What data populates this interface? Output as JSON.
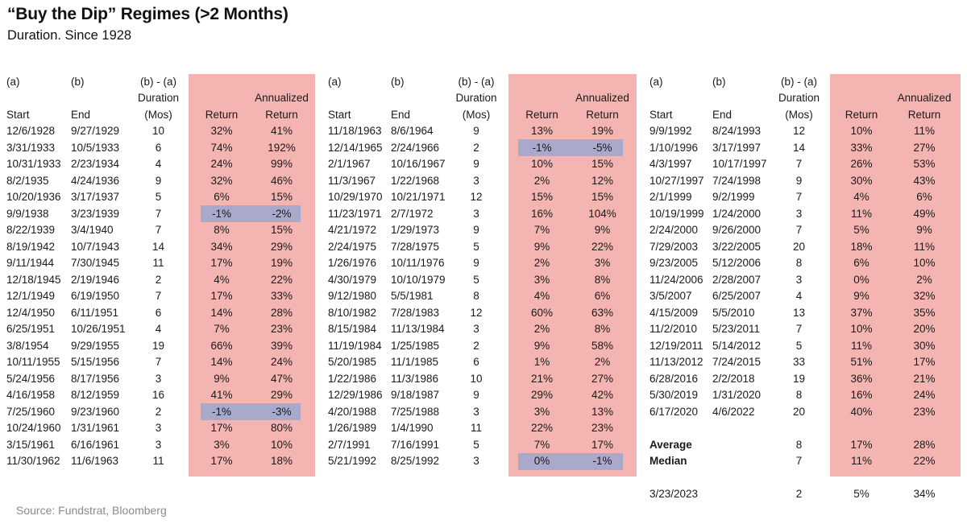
{
  "title": "“Buy the Dip” Regimes (>2 Months)",
  "subtitle": "Duration. Since 1928",
  "source": "Source: Fundstrat, Bloomberg",
  "header": {
    "a": "(a)",
    "b": "(b)",
    "ba": "(b) - (a)",
    "duration": "Duration",
    "annualized": "Annualized",
    "start": "Start",
    "end": "End",
    "mos": "(Mos)",
    "return": "Return",
    "ann_return": "Return"
  },
  "highlight_color": "#a9a9cc",
  "shade_color": "#f4b5b2",
  "chart_data": {
    "type": "table",
    "columns": [
      "Start",
      "End",
      "Duration (Mos)",
      "Return",
      "Annualized Return"
    ],
    "panels": [
      {
        "rows": [
          [
            "12/6/1928",
            "9/27/1929",
            "10",
            "32%",
            "41%"
          ],
          [
            "3/31/1933",
            "10/5/1933",
            "6",
            "74%",
            "192%"
          ],
          [
            "10/31/1933",
            "2/23/1934",
            "4",
            "24%",
            "99%"
          ],
          [
            "8/2/1935",
            "4/24/1936",
            "9",
            "32%",
            "46%"
          ],
          [
            "10/20/1936",
            "3/17/1937",
            "5",
            "6%",
            "15%"
          ],
          [
            "9/9/1938",
            "3/23/1939",
            "7",
            "-1%",
            "-2%"
          ],
          [
            "8/22/1939",
            "3/4/1940",
            "7",
            "8%",
            "15%"
          ],
          [
            "8/19/1942",
            "10/7/1943",
            "14",
            "34%",
            "29%"
          ],
          [
            "9/11/1944",
            "7/30/1945",
            "11",
            "17%",
            "19%"
          ],
          [
            "12/18/1945",
            "2/19/1946",
            "2",
            "4%",
            "22%"
          ],
          [
            "12/1/1949",
            "6/19/1950",
            "7",
            "17%",
            "33%"
          ],
          [
            "12/4/1950",
            "6/11/1951",
            "6",
            "14%",
            "28%"
          ],
          [
            "6/25/1951",
            "10/26/1951",
            "4",
            "7%",
            "23%"
          ],
          [
            "3/8/1954",
            "9/29/1955",
            "19",
            "66%",
            "39%"
          ],
          [
            "10/11/1955",
            "5/15/1956",
            "7",
            "14%",
            "24%"
          ],
          [
            "5/24/1956",
            "8/17/1956",
            "3",
            "9%",
            "47%"
          ],
          [
            "4/16/1958",
            "8/12/1959",
            "16",
            "41%",
            "29%"
          ],
          [
            "7/25/1960",
            "9/23/1960",
            "2",
            "-1%",
            "-3%"
          ],
          [
            "10/24/1960",
            "1/31/1961",
            "3",
            "17%",
            "80%"
          ],
          [
            "3/15/1961",
            "6/16/1961",
            "3",
            "3%",
            "10%"
          ],
          [
            "11/30/1962",
            "11/6/1963",
            "11",
            "17%",
            "18%"
          ]
        ],
        "highlighted_rows": [
          5,
          17
        ]
      },
      {
        "rows": [
          [
            "11/18/1963",
            "8/6/1964",
            "9",
            "13%",
            "19%"
          ],
          [
            "12/14/1965",
            "2/24/1966",
            "2",
            "-1%",
            "-5%"
          ],
          [
            "2/1/1967",
            "10/16/1967",
            "9",
            "10%",
            "15%"
          ],
          [
            "11/3/1967",
            "1/22/1968",
            "3",
            "2%",
            "12%"
          ],
          [
            "10/29/1970",
            "10/21/1971",
            "12",
            "15%",
            "15%"
          ],
          [
            "11/23/1971",
            "2/7/1972",
            "3",
            "16%",
            "104%"
          ],
          [
            "4/21/1972",
            "1/29/1973",
            "9",
            "7%",
            "9%"
          ],
          [
            "2/24/1975",
            "7/28/1975",
            "5",
            "9%",
            "22%"
          ],
          [
            "1/26/1976",
            "10/11/1976",
            "9",
            "2%",
            "3%"
          ],
          [
            "4/30/1979",
            "10/10/1979",
            "5",
            "3%",
            "8%"
          ],
          [
            "9/12/1980",
            "5/5/1981",
            "8",
            "4%",
            "6%"
          ],
          [
            "8/10/1982",
            "7/28/1983",
            "12",
            "60%",
            "63%"
          ],
          [
            "8/15/1984",
            "11/13/1984",
            "3",
            "2%",
            "8%"
          ],
          [
            "11/19/1984",
            "1/25/1985",
            "2",
            "9%",
            "58%"
          ],
          [
            "5/20/1985",
            "11/1/1985",
            "6",
            "1%",
            "2%"
          ],
          [
            "1/22/1986",
            "11/3/1986",
            "10",
            "21%",
            "27%"
          ],
          [
            "12/29/1986",
            "9/18/1987",
            "9",
            "29%",
            "42%"
          ],
          [
            "4/20/1988",
            "7/25/1988",
            "3",
            "3%",
            "13%"
          ],
          [
            "1/26/1989",
            "1/4/1990",
            "11",
            "22%",
            "23%"
          ],
          [
            "2/7/1991",
            "7/16/1991",
            "5",
            "7%",
            "17%"
          ],
          [
            "5/21/1992",
            "8/25/1992",
            "3",
            "0%",
            "-1%"
          ]
        ],
        "highlighted_rows": [
          1,
          20
        ]
      },
      {
        "rows": [
          [
            "9/9/1992",
            "8/24/1993",
            "12",
            "10%",
            "11%"
          ],
          [
            "1/10/1996",
            "3/17/1997",
            "14",
            "33%",
            "27%"
          ],
          [
            "4/3/1997",
            "10/17/1997",
            "7",
            "26%",
            "53%"
          ],
          [
            "10/27/1997",
            "7/24/1998",
            "9",
            "30%",
            "43%"
          ],
          [
            "2/1/1999",
            "9/2/1999",
            "7",
            "4%",
            "6%"
          ],
          [
            "10/19/1999",
            "1/24/2000",
            "3",
            "11%",
            "49%"
          ],
          [
            "2/24/2000",
            "9/26/2000",
            "7",
            "5%",
            "9%"
          ],
          [
            "7/29/2003",
            "3/22/2005",
            "20",
            "18%",
            "11%"
          ],
          [
            "9/23/2005",
            "5/12/2006",
            "8",
            "6%",
            "10%"
          ],
          [
            "11/24/2006",
            "2/28/2007",
            "3",
            "0%",
            "2%"
          ],
          [
            "3/5/2007",
            "6/25/2007",
            "4",
            "9%",
            "32%"
          ],
          [
            "4/15/2009",
            "5/5/2010",
            "13",
            "37%",
            "35%"
          ],
          [
            "11/2/2010",
            "5/23/2011",
            "7",
            "10%",
            "20%"
          ],
          [
            "12/19/2011",
            "5/14/2012",
            "5",
            "11%",
            "30%"
          ],
          [
            "11/13/2012",
            "7/24/2015",
            "33",
            "51%",
            "17%"
          ],
          [
            "6/28/2016",
            "2/2/2018",
            "19",
            "36%",
            "21%"
          ],
          [
            "5/30/2019",
            "1/31/2020",
            "8",
            "16%",
            "24%"
          ],
          [
            "6/17/2020",
            "4/6/2022",
            "20",
            "40%",
            "23%"
          ]
        ],
        "highlighted_rows": [],
        "summary": [
          {
            "label": "Average",
            "duration": "8",
            "return": "17%",
            "annualized": "28%"
          },
          {
            "label": "Median",
            "duration": "7",
            "return": "11%",
            "annualized": "22%"
          }
        ],
        "current": {
          "start": "3/23/2023",
          "duration": "2",
          "return": "5%",
          "annualized": "34%"
        }
      }
    ]
  }
}
